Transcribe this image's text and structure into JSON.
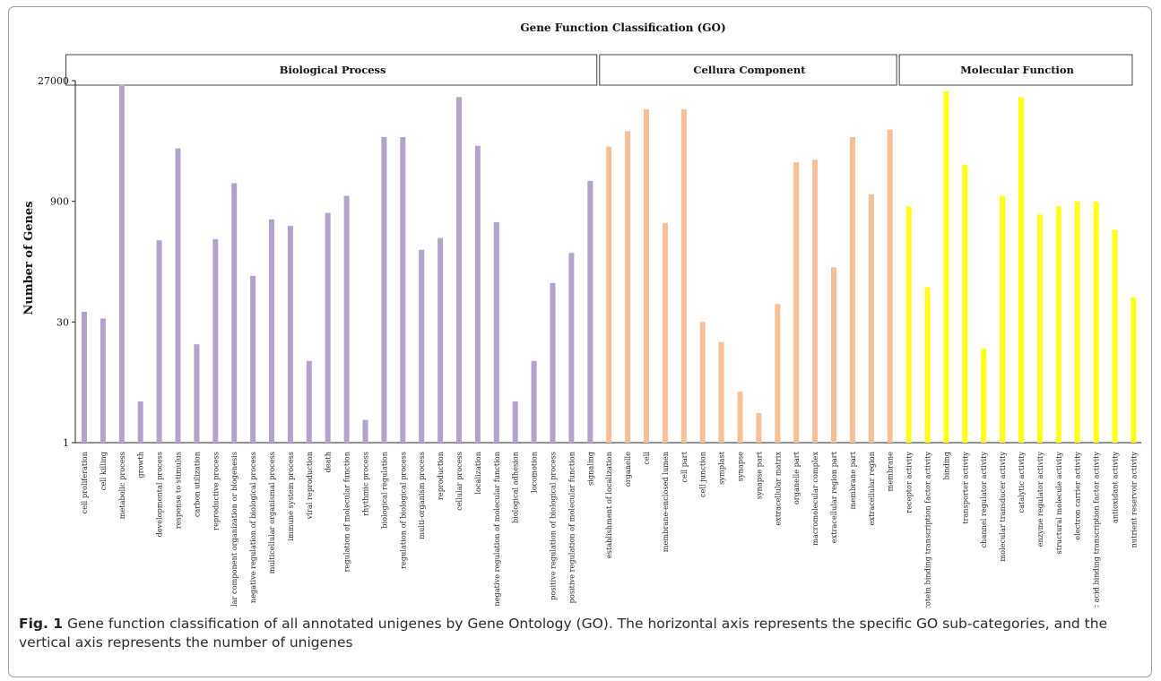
{
  "chart_data": {
    "type": "bar",
    "title": "Gene Function Classification (GO)",
    "ylabel": "Number of Genes",
    "yscale": "log",
    "yticks": [
      1,
      30,
      900,
      27000
    ],
    "ylim": [
      1,
      27000
    ],
    "grid": false,
    "groups": [
      {
        "name": "Biological Process",
        "color": "#b3a3cc",
        "start": 0,
        "end": 27
      },
      {
        "name": "Cellura Component",
        "color": "#f7bf95",
        "start": 28,
        "end": 43
      },
      {
        "name": "Molecular Function",
        "color": "#ffff1a",
        "start": 44,
        "end": 55
      }
    ],
    "categories": [
      "cell proliferation",
      "cell killing",
      "metabolic process",
      "growth",
      "developmental process",
      "response to stimulus",
      "carbon utilization",
      "reproductive process",
      "cellular component organization or biogenesis",
      "negative regulation of biological process",
      "multicellular organismal process",
      "immune system process",
      "viral reproduction",
      "death",
      "regulation of molecular function",
      "rhythmic process",
      "biological regulation",
      "regulation of biological process",
      "multi-organism process",
      "reproduction",
      "cellular process",
      "localization",
      "negative regulation of molecular function",
      "biological adhesion",
      "locomotion",
      "positive regulation of biological process",
      "positive regulation of molecular function",
      "signaling",
      "establishment of localization",
      "organelle",
      "cell",
      "membrane-enclosed lumen",
      "cell part",
      "cell junction",
      "symplast",
      "synapse",
      "synapse part",
      "extracellular matrix",
      "organelle part",
      "macromolecular complex",
      "extracellular region part",
      "membrane part",
      "extracellular region",
      "membrane",
      "receptor activity",
      "protein binding transcription factor activity",
      "binding",
      "transporter activity",
      "channel regulator activity",
      "molecular transducer activity",
      "catalytic activity",
      "enzyme regulator activity",
      "structural molecule activity",
      "electron carrier activity",
      "nucleic acid binding transcription factor activity",
      "antioxidant activity",
      "nutrient reservoir activity"
    ],
    "values": [
      40,
      33,
      24000,
      3.2,
      300,
      4000,
      16,
      310,
      1500,
      110,
      540,
      450,
      10,
      650,
      1050,
      1.9,
      5500,
      5500,
      230,
      320,
      17000,
      4300,
      500,
      3.2,
      10,
      90,
      210,
      1600,
      4200,
      6500,
      12000,
      490,
      12000,
      30,
      17,
      4.2,
      2.3,
      50,
      2700,
      2900,
      140,
      5500,
      1100,
      6800,
      780,
      80,
      20000,
      2500,
      14,
      1050,
      17000,
      620,
      780,
      900,
      890,
      400,
      60
    ]
  },
  "caption": {
    "label": "Fig. 1",
    "text": "Gene function classification of all annotated unigenes by Gene Ontology (GO). The horizontal axis represents the specific GO sub-categories, and the vertical axis represents the number of unigenes"
  }
}
